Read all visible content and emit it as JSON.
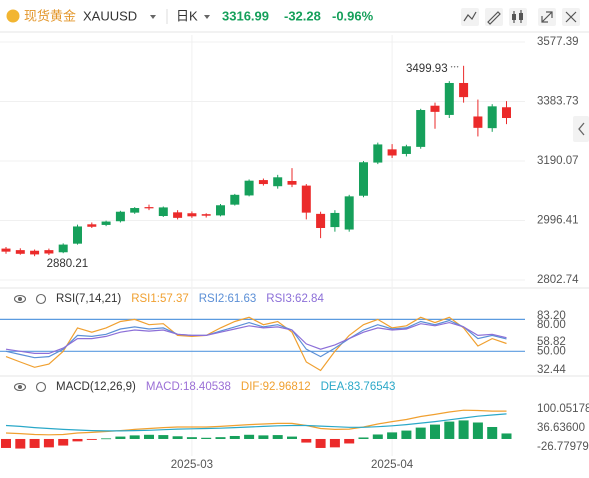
{
  "header": {
    "symbol_name": "现货黄金",
    "symbol": "XAUUSD",
    "period": "日K",
    "price": "3316.99",
    "change": "-32.28",
    "change_pct": "-0.96%"
  },
  "chart_data": [
    {
      "type": "candlestick",
      "up_color": "#16a05b",
      "down_color": "#eb2a2a",
      "grid": true,
      "categories": [
        null,
        null,
        null,
        null,
        null,
        null,
        null,
        null,
        null,
        null,
        null,
        null,
        null,
        "2025-03",
        null,
        null,
        null,
        null,
        null,
        null,
        null,
        null,
        null,
        null,
        null,
        null,
        null,
        "2025-04",
        null,
        null,
        null,
        null,
        null,
        null,
        null,
        null
      ],
      "open": [
        2905,
        2900,
        2898,
        2900,
        2893,
        2921,
        2984,
        2982,
        2994,
        3022,
        3040,
        3011,
        3023,
        3020,
        3017,
        3013,
        3048,
        3078,
        3128,
        3108,
        3125,
        3110,
        3018,
        2975,
        2967,
        3077,
        3185,
        3228,
        3213,
        3236,
        3370,
        3340,
        3444,
        3335,
        3297,
        3365
      ],
      "high": [
        2910,
        2906,
        2902,
        2905,
        2922,
        2983,
        2990,
        2996,
        3028,
        3040,
        3048,
        3042,
        3030,
        3026,
        3020,
        3050,
        3083,
        3130,
        3133,
        3145,
        3167,
        3115,
        3025,
        3030,
        3080,
        3190,
        3250,
        3245,
        3243,
        3360,
        3380,
        3450,
        3499.93,
        3390,
        3375,
        3385
      ],
      "low": [
        2888,
        2885,
        2880.21,
        2884,
        2890,
        2918,
        2972,
        2978,
        2990,
        3018,
        3030,
        3008,
        3000,
        3005,
        3006,
        3010,
        3045,
        3075,
        3110,
        3100,
        3105,
        3000,
        2939,
        2960,
        2960,
        3072,
        3180,
        3200,
        3205,
        3230,
        3295,
        3330,
        3380,
        3270,
        3285,
        3310
      ],
      "close": [
        2895,
        2888,
        2886,
        2889,
        2918,
        2977,
        2976,
        2993,
        3025,
        3037,
        3036,
        3039,
        3005,
        3010,
        3012,
        3046,
        3080,
        3126,
        3115,
        3137,
        3113,
        3022,
        2972,
        3021,
        3075,
        3186,
        3244,
        3208,
        3238,
        3356,
        3350,
        3444,
        3398,
        3298,
        3368,
        3330
      ],
      "ylim": [
        2802.74,
        3577.39
      ],
      "yticks": [
        2802.74,
        2996.41,
        3190.07,
        3383.73,
        3577.39
      ]
    },
    {
      "type": "line",
      "title": "RSI(7,14,21)",
      "ylim": [
        32.44,
        83.2
      ],
      "yticks": [
        {
          "value": 83.2,
          "label": "83.20"
        },
        58.82,
        32.44
      ],
      "level_lines": [
        {
          "value": 80,
          "label": "80.00"
        },
        {
          "value": 50,
          "label": "50.00"
        }
      ],
      "level_color": "#5b9be0",
      "series": [
        {
          "name": "RSI1:57.37",
          "color": "#f0a030",
          "values": [
            45,
            40,
            35,
            38,
            50,
            72,
            68,
            72,
            78,
            80,
            75,
            76,
            65,
            64,
            65,
            72,
            78,
            82,
            75,
            78,
            68,
            40,
            32,
            50,
            65,
            75,
            80,
            72,
            74,
            82,
            77,
            82,
            72,
            55,
            62,
            57.37
          ]
        },
        {
          "name": "RSI2:61.63",
          "color": "#5b8fd6",
          "values": [
            50,
            47,
            44,
            45,
            52,
            65,
            64,
            66,
            71,
            73,
            71,
            72,
            66,
            65,
            65,
            69,
            73,
            77,
            73,
            75,
            70,
            52,
            45,
            53,
            62,
            70,
            75,
            71,
            72,
            78,
            75,
            79,
            73,
            62,
            65,
            61.63
          ]
        },
        {
          "name": "RSI3:62.84",
          "color": "#8c6fd8",
          "values": [
            52,
            50,
            48,
            48,
            53,
            62,
            62,
            64,
            68,
            70,
            69,
            70,
            66,
            65,
            65,
            68,
            71,
            74,
            72,
            73,
            70,
            57,
            52,
            56,
            62,
            68,
            72,
            70,
            71,
            76,
            74,
            77,
            73,
            65,
            66,
            62.84
          ]
        }
      ]
    },
    {
      "type": "macd",
      "title": "MACD(12,26,9)",
      "ylim": [
        -53.5,
        146.8
      ],
      "yticks": [
        100.05178,
        {
          "value": 36.636,
          "label": "36.63600"
        },
        -26.77979
      ],
      "series": [
        {
          "name": "MACD:18.40538",
          "type": "bar",
          "color": "#16a05b",
          "negative_color": "#eb2a2a",
          "label_color": "#9b6fd6",
          "values": [
            -30,
            -32,
            -30,
            -28,
            -22,
            -8,
            -3,
            2,
            8,
            12,
            14,
            13,
            9,
            6,
            4,
            6,
            10,
            14,
            12,
            13,
            8,
            -12,
            -30,
            -28,
            -15,
            5,
            15,
            22,
            28,
            38,
            48,
            58,
            62,
            55,
            40,
            18.40538
          ]
        },
        {
          "name": "DIF:92.96812",
          "type": "line",
          "color": "#f0a030",
          "values": [
            20,
            18,
            15,
            14,
            15,
            20,
            22,
            25,
            28,
            32,
            35,
            38,
            40,
            40,
            40,
            42,
            45,
            48,
            50,
            52,
            52,
            45,
            35,
            32,
            33,
            40,
            50,
            58,
            65,
            75,
            82,
            90,
            96,
            95,
            93,
            92.96812
          ]
        },
        {
          "name": "DEA:83.76543",
          "type": "line",
          "color": "#2aa8c8",
          "values": [
            45,
            42,
            38,
            35,
            32,
            30,
            28,
            27,
            27,
            28,
            29,
            31,
            33,
            34,
            35,
            36,
            38,
            40,
            42,
            44,
            45,
            45,
            43,
            41,
            39,
            39,
            41,
            44,
            48,
            53,
            58,
            64,
            70,
            76,
            80,
            83.76543
          ]
        }
      ]
    }
  ]
}
